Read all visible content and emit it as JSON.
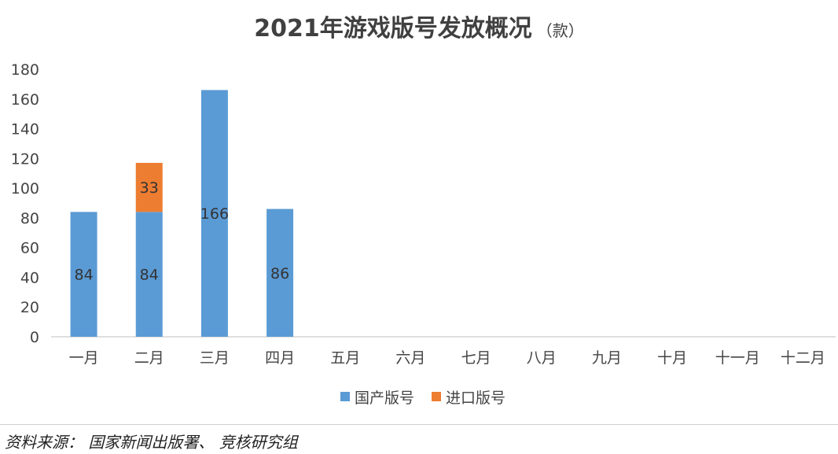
{
  "chart_data": {
    "type": "bar",
    "stacked": true,
    "title": "2021年游戏版号发放概况",
    "title_unit": "（款）",
    "categories": [
      "一月",
      "二月",
      "三月",
      "四月",
      "五月",
      "六月",
      "七月",
      "八月",
      "九月",
      "十月",
      "十一月",
      "十二月"
    ],
    "series": [
      {
        "name": "国产版号",
        "color": "#5b9bd5",
        "values": [
          84,
          84,
          166,
          86,
          null,
          null,
          null,
          null,
          null,
          null,
          null,
          null
        ]
      },
      {
        "name": "进口版号",
        "color": "#ed7d31",
        "values": [
          null,
          33,
          null,
          null,
          null,
          null,
          null,
          null,
          null,
          null,
          null,
          null
        ]
      }
    ],
    "ylim": [
      0,
      180
    ],
    "yticks": [
      0,
      20,
      40,
      60,
      80,
      100,
      120,
      140,
      160,
      180
    ],
    "grid": false,
    "legend": "bottom"
  },
  "source": "资料来源： 国家新闻出版署、 竞核研究组"
}
